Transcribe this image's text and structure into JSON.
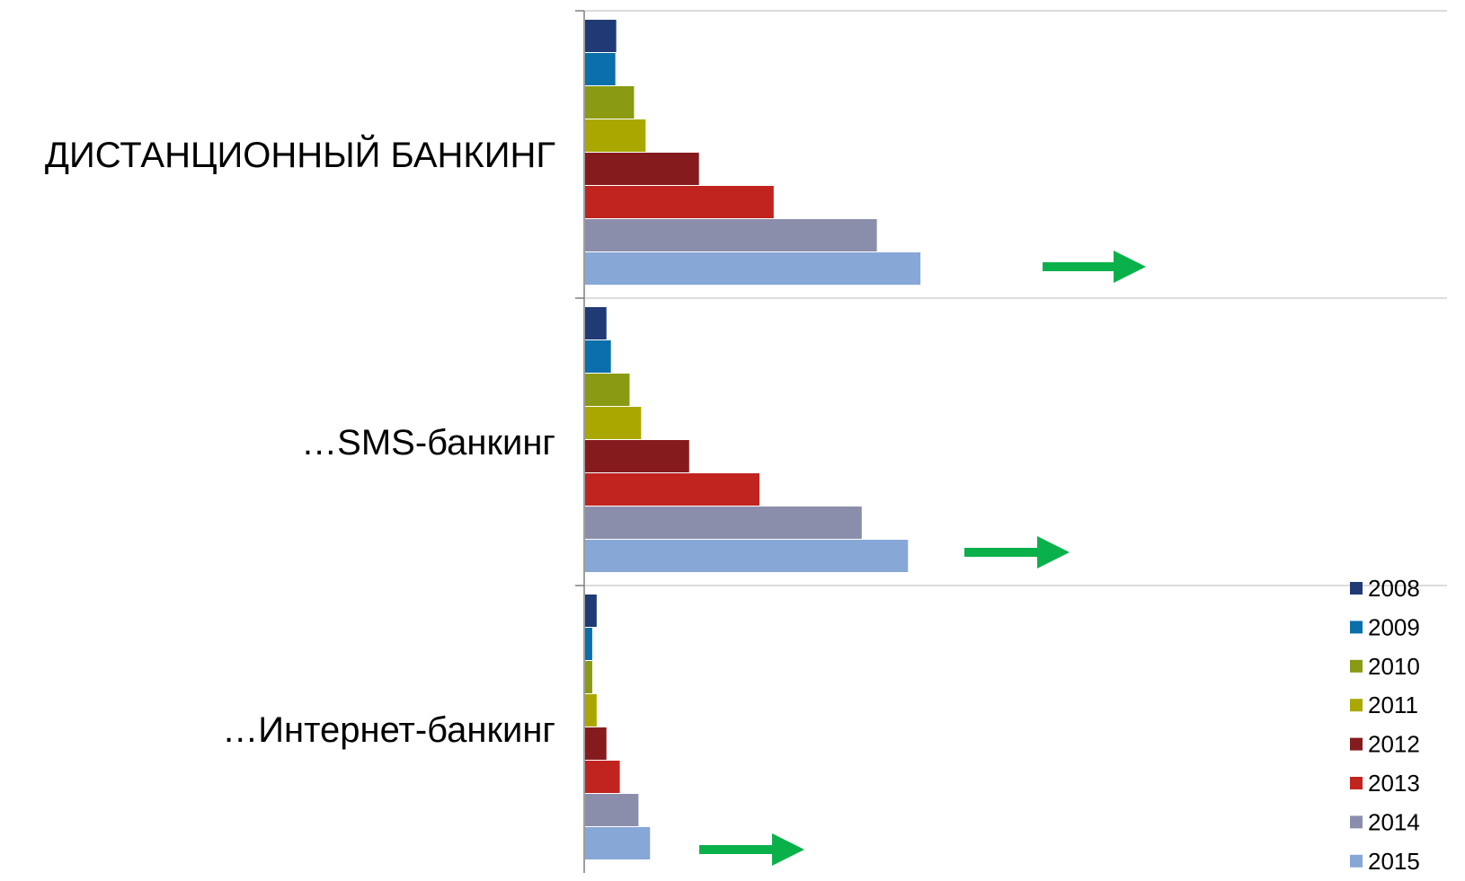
{
  "chart_data": {
    "type": "bar",
    "orientation": "horizontal",
    "categories": [
      "ДИСТАНЦИОННЫЙ БАНКИНГ",
      "…SMS-банкинг",
      "…Интернет-банкинг"
    ],
    "series": [
      {
        "name": "2008",
        "color": "#203a75",
        "values": [
          35,
          24,
          13
        ]
      },
      {
        "name": "2009",
        "color": "#0a6fab",
        "values": [
          34,
          29,
          8
        ]
      },
      {
        "name": "2010",
        "color": "#8a9a13",
        "values": [
          55,
          50,
          8
        ]
      },
      {
        "name": "2011",
        "color": "#aaa800",
        "values": [
          68,
          63,
          13
        ]
      },
      {
        "name": "2012",
        "color": "#861b1e",
        "values": [
          128,
          117,
          24
        ]
      },
      {
        "name": "2013",
        "color": "#c1241f",
        "values": [
          212,
          196,
          39
        ]
      },
      {
        "name": "2014",
        "color": "#8b8eab",
        "values": [
          328,
          311,
          60
        ]
      },
      {
        "name": "2015",
        "color": "#87a7d6",
        "values": [
          377,
          363,
          73
        ]
      }
    ],
    "xlim": [
      0,
      970
    ],
    "legend_position": "bottom-right",
    "gridlines": "category separators",
    "trend_arrow_color": "#0ab14b",
    "trend_arrow_note": "green arrows to the right of each group"
  }
}
